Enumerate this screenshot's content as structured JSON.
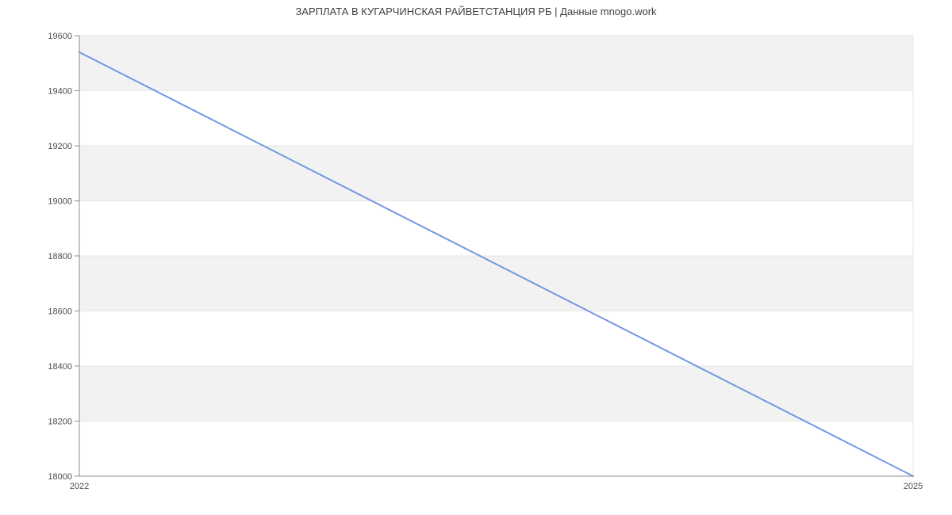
{
  "page": {
    "title": "ЗАРПЛАТА В КУГАРЧИНСКАЯ РАЙВЕТСТАНЦИЯ РБ | Данные mnogo.work"
  },
  "chart_data": {
    "type": "line",
    "title": "ЗАРПЛАТА В КУГАРЧИНСКАЯ РАЙВЕТСТАНЦИЯ РБ | Данные mnogo.work",
    "x": [
      2022,
      2025
    ],
    "values": [
      19540,
      18000
    ],
    "xlim": [
      2022,
      2025
    ],
    "ylim": [
      18000,
      19600
    ],
    "y_tick_step": 200,
    "y_tick_labels": [
      "18000",
      "18200",
      "18400",
      "18600",
      "18800",
      "19000",
      "19200",
      "19400",
      "19600"
    ],
    "x_tick_labels": [
      {
        "value": 2022,
        "label": "2022"
      },
      {
        "value": 2025,
        "label": "2025"
      }
    ],
    "grid": "alternating-horizontal-bands",
    "legend": "none",
    "xlabel": "",
    "ylabel": "",
    "colors": {
      "line": "#7297e3",
      "band": "#f2f2f2",
      "gridline": "#e7e7e7",
      "axis": "#8c8c8c",
      "tick_text": "#4d4d4d",
      "title_text": "#3f3f3f",
      "background": "#ffffff"
    }
  }
}
